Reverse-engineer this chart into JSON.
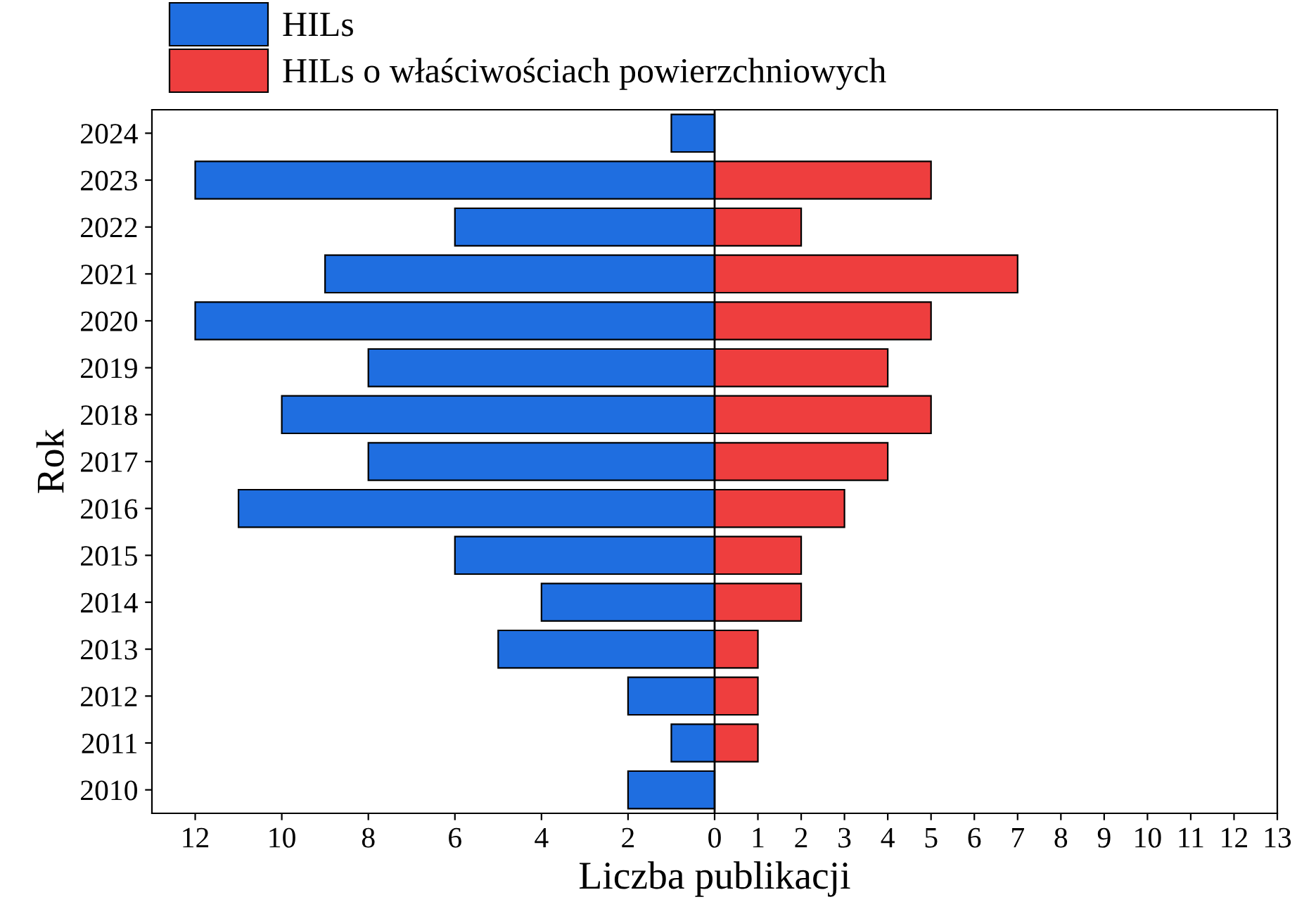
{
  "chart_data": {
    "type": "bar",
    "orientation": "horizontal",
    "xlabel": "Liczba publikacji",
    "ylabel": "Rok",
    "categories": [
      "2024",
      "2023",
      "2022",
      "2021",
      "2020",
      "2019",
      "2018",
      "2017",
      "2016",
      "2015",
      "2014",
      "2013",
      "2012",
      "2011",
      "2010"
    ],
    "series": [
      {
        "name": "HILs",
        "color": "#1f6ee0",
        "values": [
          -1,
          -12,
          -6,
          -9,
          -12,
          -8,
          -10,
          -8,
          -11,
          -6,
          -4,
          -5,
          -2,
          -1,
          -2
        ]
      },
      {
        "name": "HILs o właściwościach powierzchniowych",
        "color": "#ee3e3e",
        "values": [
          null,
          5,
          2,
          7,
          5,
          4,
          5,
          4,
          3,
          2,
          2,
          1,
          1,
          1,
          null
        ]
      }
    ],
    "xlim": [
      -13,
      13
    ],
    "xticks": [
      {
        "value": -12,
        "label": "12"
      },
      {
        "value": -10,
        "label": "10"
      },
      {
        "value": -8,
        "label": "8"
      },
      {
        "value": -6,
        "label": "6"
      },
      {
        "value": -4,
        "label": "4"
      },
      {
        "value": -2,
        "label": "2"
      },
      0,
      1,
      2,
      3,
      4,
      5,
      6,
      7,
      8,
      9,
      10,
      11,
      12,
      13
    ],
    "ref_lines": [
      {
        "axis": "x",
        "value": 0,
        "color": "#000000"
      }
    ],
    "legend": "top left",
    "grid": false,
    "stacked": true
  }
}
